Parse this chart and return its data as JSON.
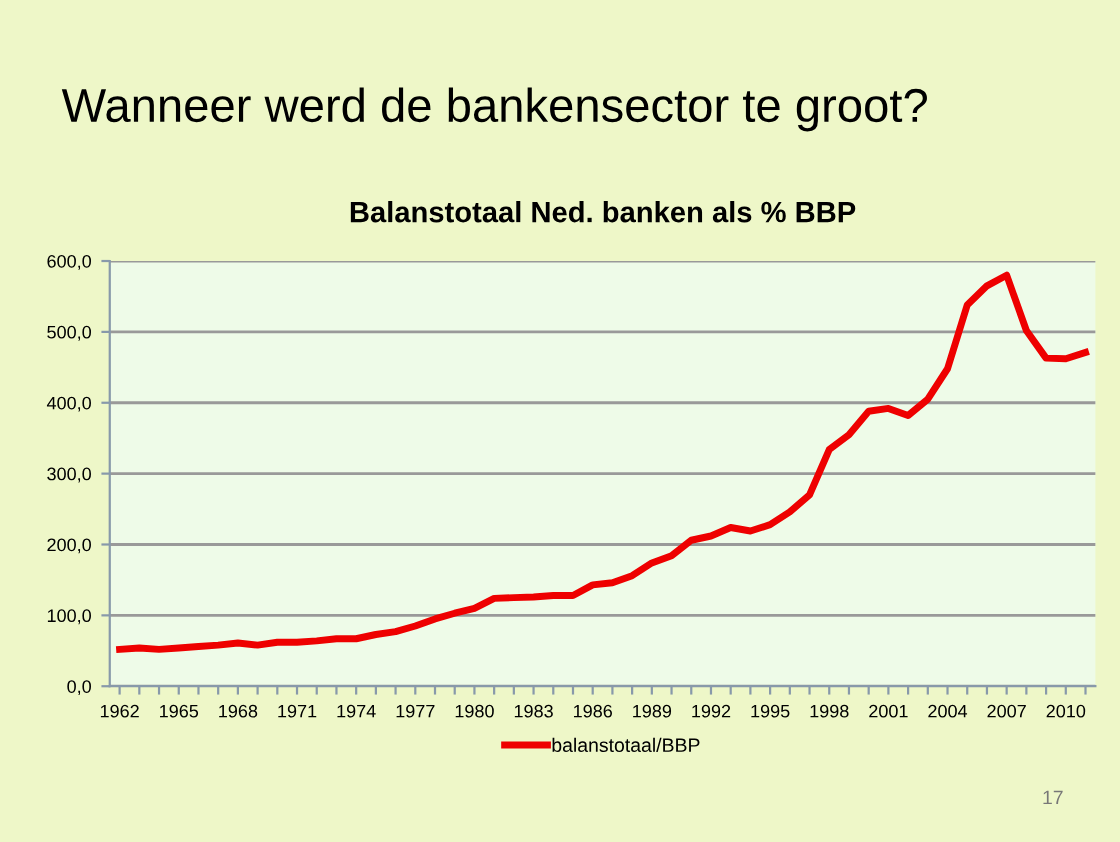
{
  "chart_data": {
    "type": "line",
    "title": "Balanstotaal Ned. banken als % BBP",
    "subtitle": "Wanneer werd de bankensector te groot?",
    "categories": [
      "1962",
      null,
      null,
      "1965",
      null,
      null,
      "1968",
      null,
      null,
      "1971",
      null,
      null,
      "1974",
      null,
      null,
      "1977",
      null,
      null,
      "1980",
      null,
      null,
      "1983",
      null,
      null,
      "1986",
      null,
      null,
      "1989",
      null,
      null,
      "1992",
      null,
      null,
      "1995",
      null,
      null,
      "1998",
      null,
      null,
      "2001",
      null,
      null,
      "2004",
      null,
      null,
      "2007",
      null,
      null,
      "2010",
      null
    ],
    "series": [
      {
        "name": "balanstotaal/BBP",
        "color": "#ee0000",
        "values": [
          52,
          54,
          52,
          54,
          56,
          58,
          61,
          58,
          62,
          62,
          64,
          67,
          67,
          73,
          77,
          85,
          95,
          103,
          110,
          124,
          125,
          126,
          128,
          128,
          143,
          146,
          156,
          174,
          184,
          206,
          212,
          224,
          219,
          228,
          246,
          270,
          334,
          355,
          388,
          392,
          382,
          405,
          448,
          538,
          565,
          580,
          502,
          463,
          462,
          471
        ]
      }
    ],
    "ylim": [
      0,
      600
    ],
    "yticks": [
      {
        "value": 0,
        "label": "0,0"
      },
      {
        "value": 100,
        "label": "100,0"
      },
      {
        "value": 200,
        "label": "200,0"
      },
      {
        "value": 300,
        "label": "300,0"
      },
      {
        "value": 400,
        "label": "400,0"
      },
      {
        "value": 500,
        "label": "500,0"
      },
      {
        "value": 600,
        "label": "600,0"
      }
    ],
    "grid": "y",
    "legend": "bottom",
    "marker": "none",
    "line_style": "solid",
    "annotations": [
      "17"
    ]
  }
}
